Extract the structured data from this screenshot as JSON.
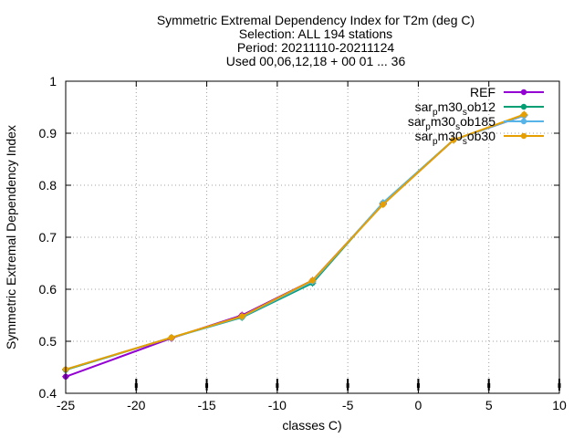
{
  "chart_data": {
    "type": "line",
    "title_lines": [
      "Symmetric Extremal Dependency Index  for T2m (deg C)",
      "Selection: ALL    194 stations",
      "Period: 20211110-20211124",
      "Used 00,06,12,18 + 00 01 ... 36"
    ],
    "xlabel": "classes C)",
    "ylabel": "Symmetric Extremal Dependency Index",
    "xlim": [
      -25,
      10
    ],
    "ylim": [
      0.4,
      1.0
    ],
    "x_ticks": [
      -25,
      -20,
      -15,
      -10,
      -5,
      0,
      5,
      10
    ],
    "y_ticks": [
      0.4,
      0.5,
      0.6,
      0.7,
      0.8,
      0.9,
      1.0
    ],
    "x_tick_labels": [
      "-25",
      "-20",
      "-15",
      "-10",
      "-5",
      "0",
      "5",
      "10"
    ],
    "y_tick_labels": [
      "0.4",
      "0.5",
      "0.6",
      "0.7",
      "0.8",
      "0.9",
      "1"
    ],
    "grid": true,
    "legend_position": "top-right",
    "x": [
      -25,
      -17.5,
      -12.5,
      -7.5,
      -2.5,
      2.5,
      7.5
    ],
    "series": [
      {
        "name": "REF",
        "values": [
          0.432,
          0.506,
          0.55,
          0.617,
          0.764,
          0.887,
          0.934
        ],
        "color": "#9400d3"
      },
      {
        "name": "sar_p m30_s ob12",
        "values": [
          0.445,
          0.507,
          0.546,
          0.612,
          0.766,
          0.887,
          0.935
        ],
        "color": "#009e73"
      },
      {
        "name": "sar_p m30_s ob185",
        "values": [
          0.446,
          0.507,
          0.547,
          0.615,
          0.766,
          0.887,
          0.934
        ],
        "color": "#56b4e9"
      },
      {
        "name": "sar_p m30_s ob30",
        "values": [
          0.446,
          0.507,
          0.548,
          0.617,
          0.763,
          0.887,
          0.936
        ],
        "color": "#e69f00"
      }
    ],
    "legend_labels": [
      {
        "base": "REF",
        "parts": []
      },
      {
        "base": "",
        "parts": [
          {
            "t": "sar"
          },
          {
            "t": "p",
            "sub": true
          },
          {
            "t": "m30"
          },
          {
            "t": "s",
            "sub": true
          },
          {
            "t": "ob12"
          }
        ]
      },
      {
        "base": "",
        "parts": [
          {
            "t": "sar"
          },
          {
            "t": "p",
            "sub": true
          },
          {
            "t": "m30"
          },
          {
            "t": "s",
            "sub": true
          },
          {
            "t": "ob185"
          }
        ]
      },
      {
        "base": "",
        "parts": [
          {
            "t": "sar"
          },
          {
            "t": "p",
            "sub": true
          },
          {
            "t": "m30"
          },
          {
            "t": "s",
            "sub": true
          },
          {
            "t": "ob30"
          }
        ]
      }
    ],
    "sample_markers_x": [
      -20,
      -15,
      -10,
      -5,
      0,
      5,
      10
    ]
  }
}
